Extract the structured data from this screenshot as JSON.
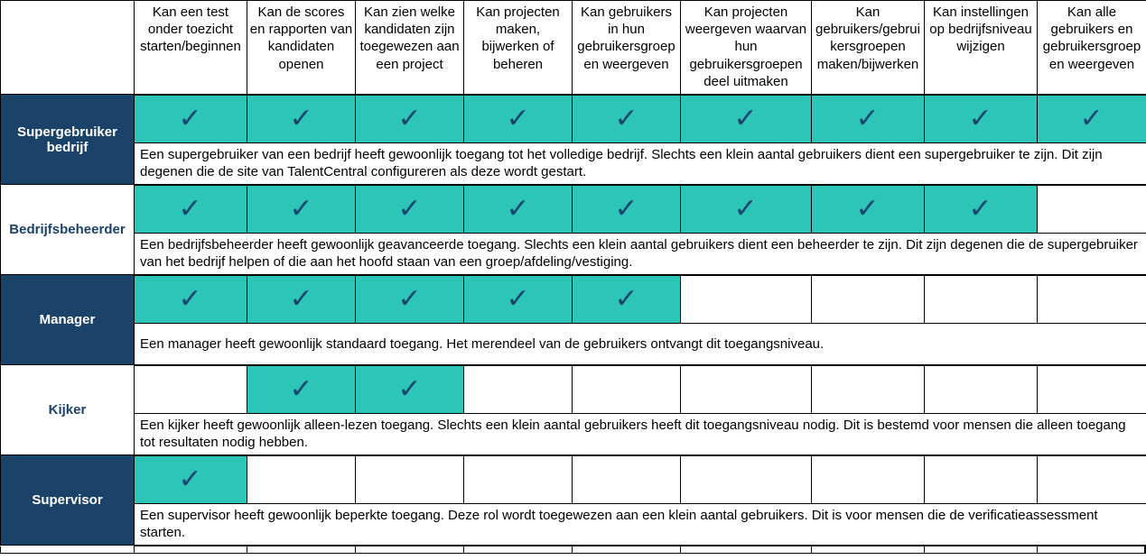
{
  "table": {
    "corner_label": "",
    "check_glyph": "✓",
    "colors": {
      "teal": "#2EC5B9",
      "navy": "#1B4369",
      "check": "#17456E",
      "border": "#000000"
    },
    "columns": [
      "Kan een test onder toezicht starten/beginnen",
      "Kan de scores en rapporten van kandidaten openen",
      "Kan zien welke kandidaten zijn toegewezen aan een project",
      "Kan projecten maken, bijwerken of beheren",
      "Kan gebruikers in hun gebruikersgroepen weergeven",
      "Kan projecten weergeven waarvan hun gebruikersgroepen deel uitmaken",
      "Kan gebruikers/gebruikersgroepen maken/bijwerken",
      "Kan instellingen op bedrijfsniveau wijzigen",
      "Kan alle gebruikers en gebruikersgroepen weergeven"
    ],
    "roles": [
      {
        "name": "Supergebruiker bedrijf",
        "checks": [
          true,
          true,
          true,
          true,
          true,
          true,
          true,
          true,
          true
        ],
        "description": "Een supergebruiker van een bedrijf heeft gewoonlijk toegang tot het volledige bedrijf. Slechts een klein aantal gebruikers dient een supergebruiker te zijn. Dit zijn degenen die de site van TalentCentral configureren als deze wordt gestart."
      },
      {
        "name": "Bedrijfsbeheerder",
        "checks": [
          true,
          true,
          true,
          true,
          true,
          true,
          true,
          true,
          false
        ],
        "description": "Een bedrijfsbeheerder heeft gewoonlijk geavanceerde toegang. Slechts een klein aantal gebruikers dient een beheerder te zijn. Dit zijn degenen die de supergebruiker van het bedrijf helpen of die aan het hoofd staan van een groep/afdeling/vestiging."
      },
      {
        "name": "Manager",
        "checks": [
          true,
          true,
          true,
          true,
          true,
          false,
          false,
          false,
          false
        ],
        "description": "Een manager heeft gewoonlijk standaard toegang. Het merendeel van de gebruikers ontvangt dit toegangsniveau."
      },
      {
        "name": "Kijker",
        "checks": [
          false,
          true,
          true,
          false,
          false,
          false,
          false,
          false,
          false
        ],
        "description": "Een kijker heeft gewoonlijk alleen-lezen toegang. Slechts een klein aantal gebruikers heeft dit toegangsniveau nodig.  Dit is bestemd voor mensen die alleen toegang tot resultaten nodig hebben."
      },
      {
        "name": "Supervisor",
        "checks": [
          true,
          false,
          false,
          false,
          false,
          false,
          false,
          false,
          false
        ],
        "description": "Een supervisor heeft gewoonlijk beperkte toegang. Deze rol wordt toegewezen aan een klein aantal gebruikers.  Dit is voor mensen die de verificatieassessment starten."
      }
    ]
  }
}
